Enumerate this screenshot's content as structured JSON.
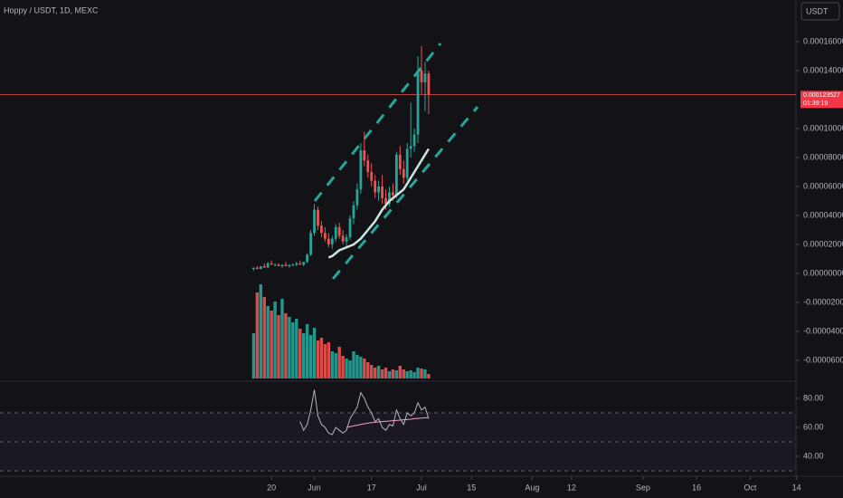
{
  "chart_data": {
    "type": "candlestick",
    "title": "Hoppy / USDT, 1D, MEXC",
    "currency": "USDT",
    "x": [
      "05-15",
      "05-16",
      "05-17",
      "05-18",
      "05-19",
      "05-20",
      "05-21",
      "05-22",
      "05-23",
      "05-24",
      "05-25",
      "05-26",
      "05-27",
      "05-28",
      "05-29",
      "05-30",
      "05-31",
      "06-01",
      "06-02",
      "06-03",
      "06-04",
      "06-05",
      "06-06",
      "06-07",
      "06-08",
      "06-09",
      "06-10",
      "06-11",
      "06-12",
      "06-13",
      "06-14",
      "06-15",
      "06-16",
      "06-17",
      "06-18",
      "06-19",
      "06-20",
      "06-21",
      "06-22",
      "06-23",
      "06-24",
      "06-25",
      "06-26",
      "06-27",
      "06-28",
      "06-29",
      "06-30",
      "07-01",
      "07-02",
      "07-03"
    ],
    "open": [
      3e-06,
      4e-06,
      3e-06,
      5e-06,
      4e-06,
      7e-06,
      6e-06,
      6e-06,
      5e-06,
      6e-06,
      5e-06,
      6e-06,
      6e-06,
      7e-06,
      6e-06,
      8e-06,
      1.3e-05,
      2.8e-05,
      4.4e-05,
      3.3e-05,
      2.8e-05,
      2.4e-05,
      2e-05,
      2.4e-05,
      3.2e-05,
      2.6e-05,
      2.2e-05,
      2.5e-05,
      3.8e-05,
      4.7e-05,
      5.8e-05,
      8.5e-05,
      7.8e-05,
      7e-05,
      6.4e-05,
      5.6e-05,
      6e-05,
      5.2e-05,
      4.8e-05,
      5.6e-05,
      5.4e-05,
      8.2e-05,
      7.2e-05,
      6.6e-05,
      8.6e-05,
      8.8e-05,
      9.6e-05,
      0.00014,
      0.000132,
      0.000138
    ],
    "high": [
      4e-06,
      5e-06,
      5e-06,
      7e-06,
      8e-06,
      9e-06,
      7e-06,
      7e-06,
      6e-06,
      8e-06,
      6e-06,
      7e-06,
      8e-06,
      9e-06,
      8e-06,
      1.4e-05,
      3e-05,
      4.8e-05,
      4.6e-05,
      3.6e-05,
      3.2e-05,
      2.8e-05,
      2.6e-05,
      3.4e-05,
      3.5e-05,
      3e-05,
      2.7e-05,
      4e-05,
      5e-05,
      6.2e-05,
      9e-05,
      9.8e-05,
      8.2e-05,
      7.6e-05,
      6.8e-05,
      6.4e-05,
      6.8e-05,
      5.8e-05,
      6e-05,
      6.2e-05,
      8.4e-05,
      8.8e-05,
      7.8e-05,
      9e-05,
      0.000118,
      0.0001,
      0.00015,
      0.000157,
      0.000146,
      0.00014
    ],
    "low": [
      2e-06,
      3e-06,
      3e-06,
      4e-06,
      4e-06,
      6e-06,
      5e-06,
      5e-06,
      4e-06,
      5e-06,
      4e-06,
      5e-06,
      5e-06,
      6e-06,
      5e-06,
      7e-06,
      1.2e-05,
      2.6e-05,
      3e-05,
      2.5e-05,
      2.2e-05,
      1.8e-05,
      1.7e-05,
      2.2e-05,
      2.4e-05,
      2e-05,
      1.9e-05,
      2.3e-05,
      3.4e-05,
      4.4e-05,
      5.5e-05,
      7.4e-05,
      6.6e-05,
      6e-05,
      5.2e-05,
      5e-05,
      4.8e-05,
      4.4e-05,
      4.6e-05,
      5e-05,
      5.2e-05,
      6.8e-05,
      6.2e-05,
      6.4e-05,
      8e-05,
      8.4e-05,
      9e-05,
      0.000124,
      0.000112,
      0.00011
    ],
    "close": [
      4e-06,
      3e-06,
      5e-06,
      4e-06,
      7e-06,
      6e-06,
      6e-06,
      5e-06,
      6e-06,
      5e-06,
      6e-06,
      6e-06,
      7e-06,
      6e-06,
      8e-06,
      1.3e-05,
      2.8e-05,
      4.4e-05,
      3.3e-05,
      2.8e-05,
      2.4e-05,
      2e-05,
      2.4e-05,
      3.2e-05,
      2.6e-05,
      2.2e-05,
      2.5e-05,
      3.8e-05,
      4.7e-05,
      5.8e-05,
      8.5e-05,
      7.8e-05,
      7e-05,
      6.4e-05,
      5.6e-05,
      6e-05,
      5.2e-05,
      4.8e-05,
      5.6e-05,
      5.4e-05,
      8.2e-05,
      7.2e-05,
      6.6e-05,
      8.6e-05,
      8.8e-05,
      9.6e-05,
      0.00014,
      0.000132,
      0.000138,
      0.000123527
    ],
    "up_color": "#26a69a",
    "down_color": "#ef5350",
    "ylim": [
      -7.375e-05,
      0.00018875
    ],
    "yticks": [
      {
        "value": 0.00016,
        "label": "0.000160000"
      },
      {
        "value": 0.00014,
        "label": "0.000140000"
      },
      {
        "value": 0.0001,
        "label": "0.000100000"
      },
      {
        "value": 8e-05,
        "label": "0.000080000"
      },
      {
        "value": 6e-05,
        "label": "0.000060000"
      },
      {
        "value": 4e-05,
        "label": "0.000040000"
      },
      {
        "value": 2e-05,
        "label": "0.000020000"
      },
      {
        "value": 0,
        "label": "0.000000000"
      },
      {
        "value": -2e-05,
        "label": "-0.000020000"
      },
      {
        "value": -4e-05,
        "label": "-0.000040000"
      },
      {
        "value": -6e-05,
        "label": "-0.000060000"
      }
    ],
    "xlim": [
      "03-05",
      "10-27"
    ],
    "xticks": [
      {
        "value": "05-20",
        "label": "20"
      },
      {
        "value": "06-01",
        "label": "Jun"
      },
      {
        "value": "06-17",
        "label": "17"
      },
      {
        "value": "07-01",
        "label": "Jul"
      },
      {
        "value": "07-15",
        "label": "15"
      },
      {
        "value": "08-01",
        "label": "Aug"
      },
      {
        "value": "08-12",
        "label": "12"
      },
      {
        "value": "09-01",
        "label": "Sep"
      },
      {
        "value": "09-16",
        "label": "16"
      },
      {
        "value": "10-01",
        "label": "Oct"
      },
      {
        "value": "10-14",
        "label": "14"
      }
    ],
    "ma": {
      "color": "#c8e6e0",
      "values": [
        null,
        null,
        null,
        null,
        null,
        null,
        null,
        null,
        null,
        null,
        null,
        null,
        null,
        null,
        null,
        null,
        null,
        null,
        null,
        null,
        null,
        1.1e-05,
        1.2e-05,
        1.4e-05,
        1.6e-05,
        1.7e-05,
        1.8e-05,
        1.9e-05,
        2e-05,
        2.2e-05,
        2.4e-05,
        2.7e-05,
        3e-05,
        3.3e-05,
        3.6e-05,
        4e-05,
        4.4e-05,
        4.7e-05,
        5e-05,
        5.2e-05,
        5.4e-05,
        5.6e-05,
        5.8e-05,
        6.2e-05,
        6.6e-05,
        7e-05,
        7.4e-05,
        7.8e-05,
        8.2e-05,
        8.6e-05
      ]
    },
    "volume": [
      50,
      95,
      104,
      90,
      80,
      75,
      85,
      70,
      88,
      72,
      68,
      62,
      66,
      55,
      50,
      60,
      48,
      56,
      42,
      45,
      38,
      40,
      30,
      28,
      35,
      25,
      22,
      20,
      30,
      26,
      24,
      22,
      18,
      15,
      12,
      14,
      10,
      12,
      8,
      10,
      9,
      14,
      10,
      8,
      9,
      7,
      12,
      11,
      10,
      5
    ],
    "countdown": "01:39:19",
    "rsi": {
      "color": "#b2b5be",
      "ma_color": "#f7a1c4",
      "band_color": "#7e57c2",
      "ylim": [
        26.875,
        89.375
      ],
      "yticks": [
        {
          "value": 80,
          "label": "80.00"
        },
        {
          "value": 60,
          "label": "60.00"
        },
        {
          "value": 40,
          "label": "40.00"
        }
      ],
      "levels": [
        70,
        50,
        30
      ],
      "values": [
        null,
        null,
        null,
        null,
        null,
        null,
        null,
        null,
        null,
        null,
        null,
        null,
        null,
        64,
        58,
        62,
        72,
        86,
        68,
        62,
        60,
        56,
        55,
        60,
        58,
        56,
        58,
        66,
        70,
        74,
        84,
        80,
        74,
        70,
        64,
        66,
        60,
        58,
        62,
        61,
        72,
        66,
        62,
        70,
        68,
        70,
        77,
        72,
        74,
        66
      ],
      "ma_values": [
        null,
        null,
        null,
        null,
        null,
        null,
        null,
        null,
        null,
        null,
        null,
        null,
        null,
        null,
        null,
        null,
        null,
        null,
        null,
        null,
        null,
        null,
        null,
        null,
        null,
        null,
        60,
        60.5,
        61,
        61.5,
        62,
        62.5,
        63,
        63.3,
        63.5,
        63.8,
        64,
        64.2,
        64.4,
        64.6,
        64.8,
        65,
        65.2,
        65.4,
        65.6,
        66,
        66.2,
        66.4,
        66.6,
        66.8
      ]
    }
  }
}
